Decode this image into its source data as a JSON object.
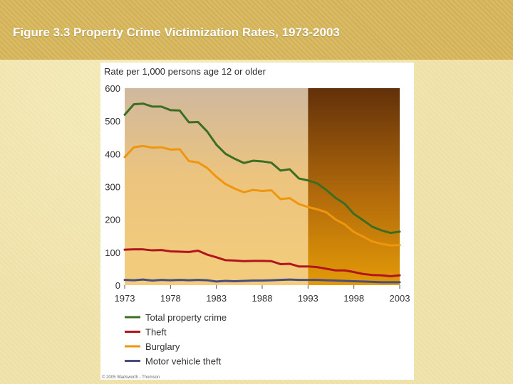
{
  "slide": {
    "title": "Figure 3.3 Property Crime Victimization Rates, 1973-2003"
  },
  "chart_data": {
    "type": "line",
    "ylabel": "Rate per 1,000 persons age 12 or older",
    "ylim": [
      0,
      600
    ],
    "xlim": [
      1973,
      2003
    ],
    "yticks": [
      0,
      100,
      200,
      300,
      400,
      500,
      600
    ],
    "xticks": [
      1973,
      1978,
      1983,
      1988,
      1993,
      1998,
      2003
    ],
    "shaded_from_year": 1993,
    "grid": false,
    "legend_position": "bottom",
    "x": [
      1973,
      1974,
      1975,
      1976,
      1977,
      1978,
      1979,
      1980,
      1981,
      1982,
      1983,
      1984,
      1985,
      1986,
      1987,
      1988,
      1989,
      1990,
      1991,
      1992,
      1993,
      1994,
      1995,
      1996,
      1997,
      1998,
      1999,
      2000,
      2001,
      2002,
      2003
    ],
    "series": [
      {
        "name": "Total property crime",
        "color": "#3b6e23",
        "values": [
          519,
          551,
          553,
          544,
          544,
          533,
          532,
          496,
          497,
          468,
          428,
          400,
          385,
          372,
          379,
          377,
          373,
          349,
          353,
          325,
          319,
          310,
          290,
          266,
          248,
          217,
          198,
          178,
          167,
          159,
          163
        ]
      },
      {
        "name": "Theft",
        "color": "#b0151d",
        "values": [
          108,
          109,
          109,
          106,
          107,
          103,
          102,
          101,
          105,
          93,
          85,
          76,
          75,
          73,
          74,
          74,
          73,
          64,
          65,
          57,
          57,
          55,
          50,
          45,
          45,
          40,
          34,
          31,
          30,
          27,
          30
        ]
      },
      {
        "name": "Burglary",
        "color": "#f0960e",
        "values": [
          390,
          420,
          424,
          419,
          420,
          413,
          414,
          378,
          374,
          357,
          330,
          308,
          294,
          283,
          290,
          287,
          289,
          262,
          265,
          247,
          238,
          231,
          222,
          200,
          185,
          162,
          148,
          133,
          126,
          121,
          122
        ]
      },
      {
        "name": "Motor vehicle theft",
        "color": "#474e7f",
        "values": [
          16,
          15,
          17,
          14,
          16,
          15,
          16,
          15,
          16,
          15,
          11,
          13,
          12,
          13,
          14,
          14,
          15,
          16,
          17,
          16,
          16,
          16,
          15,
          14,
          13,
          12,
          11,
          10,
          9,
          9,
          9
        ]
      }
    ],
    "copyright": "© 2005 Wadsworth - Thomson"
  }
}
